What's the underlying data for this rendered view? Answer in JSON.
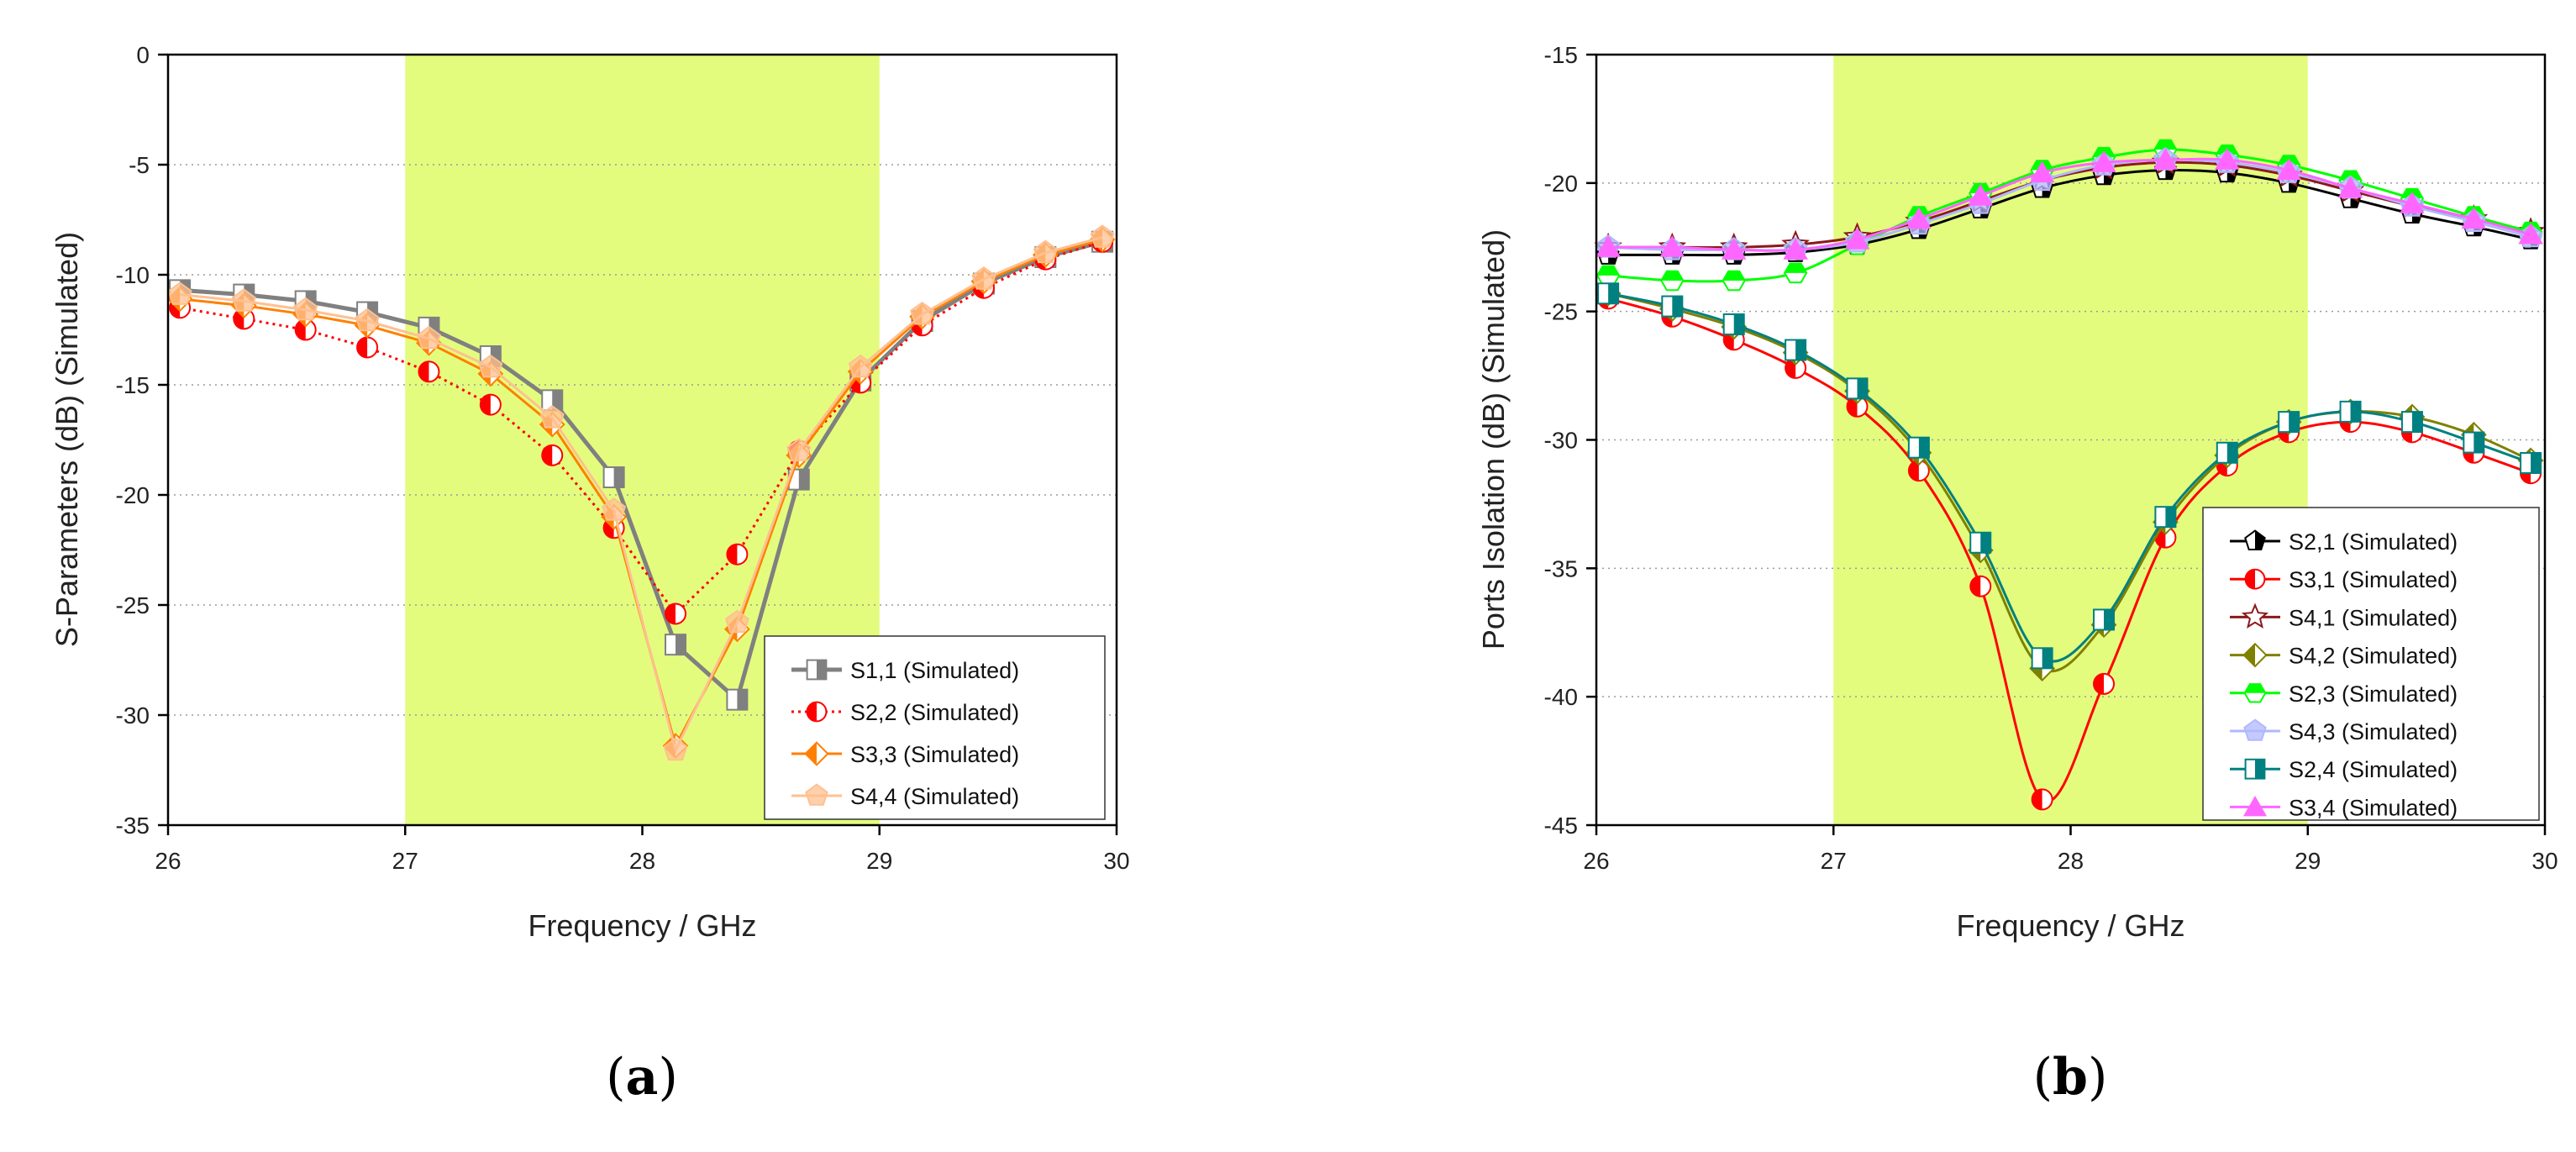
{
  "chart_data": [
    {
      "type": "line",
      "panel_label": "(a)",
      "xlabel": "Frequency / GHz",
      "ylabel": "S-Parameters (dB) (Simulated)",
      "xlim": [
        26,
        30
      ],
      "ylim": [
        -35,
        0
      ],
      "x_ticks": [
        26,
        27,
        28,
        29,
        30
      ],
      "y_ticks": [
        0,
        -5,
        -10,
        -15,
        -20,
        -25,
        -30,
        -35
      ],
      "shaded_band": [
        27,
        29
      ],
      "shaded_color": "#e3fc7e",
      "grid": "horizontal-dotted",
      "legend_position": "bottom-right",
      "x": [
        26.05,
        26.32,
        26.58,
        26.84,
        27.1,
        27.36,
        27.62,
        27.88,
        28.14,
        28.4,
        28.66,
        28.92,
        29.18,
        29.44,
        29.7,
        29.94
      ],
      "series": [
        {
          "name": "S1,1 (Simulated)",
          "color": "#808080",
          "dash": "solid",
          "width": 5,
          "marker": "square-half",
          "values": [
            -10.7,
            -10.9,
            -11.2,
            -11.7,
            -12.4,
            -13.7,
            -15.7,
            -19.2,
            -26.8,
            -29.3,
            -19.3,
            -14.8,
            -12.1,
            -10.4,
            -9.2,
            -8.5
          ]
        },
        {
          "name": "S2,2 (Simulated)",
          "color": "#ff0000",
          "dash": "dotted",
          "width": 3,
          "marker": "circle-half",
          "values": [
            -11.5,
            -12.0,
            -12.5,
            -13.3,
            -14.4,
            -15.9,
            -18.2,
            -21.5,
            -25.4,
            -22.7,
            -18.0,
            -14.9,
            -12.3,
            -10.6,
            -9.3,
            -8.5
          ]
        },
        {
          "name": "S3,3 (Simulated)",
          "color": "#ff8000",
          "dash": "solid",
          "width": 3,
          "marker": "diamond-half",
          "values": [
            -11.1,
            -11.4,
            -11.8,
            -12.3,
            -13.1,
            -14.5,
            -16.8,
            -21.0,
            -31.4,
            -26.1,
            -18.2,
            -14.4,
            -11.9,
            -10.3,
            -9.1,
            -8.4
          ]
        },
        {
          "name": "S4,4 (Simulated)",
          "color": "#ffc090",
          "dash": "solid",
          "width": 3,
          "marker": "pentagon",
          "values": [
            -10.9,
            -11.2,
            -11.6,
            -12.1,
            -12.9,
            -14.2,
            -16.5,
            -20.7,
            -31.6,
            -25.8,
            -18.0,
            -14.2,
            -11.8,
            -10.2,
            -9.0,
            -8.3
          ]
        }
      ]
    },
    {
      "type": "line",
      "panel_label": "(b)",
      "xlabel": "Frequency / GHz",
      "ylabel": "Ports Isolation (dB) (Simulated)",
      "xlim": [
        26,
        30
      ],
      "ylim": [
        -45,
        -15
      ],
      "x_ticks": [
        26,
        27,
        28,
        29,
        30
      ],
      "y_ticks": [
        -15,
        -20,
        -25,
        -30,
        -35,
        -40,
        -45
      ],
      "shaded_band": [
        27,
        29
      ],
      "shaded_color": "#e3fc7e",
      "grid": "horizontal-dotted",
      "legend_position": "bottom-right",
      "x": [
        26.05,
        26.32,
        26.58,
        26.84,
        27.1,
        27.36,
        27.62,
        27.88,
        28.14,
        28.4,
        28.66,
        28.92,
        29.18,
        29.44,
        29.7,
        29.94
      ],
      "series": [
        {
          "name": "S2,1 (Simulated)",
          "color": "#000000",
          "marker": "pentagon-half",
          "values": [
            -22.8,
            -22.8,
            -22.8,
            -22.7,
            -22.4,
            -21.8,
            -21.0,
            -20.2,
            -19.7,
            -19.5,
            -19.6,
            -20.0,
            -20.6,
            -21.2,
            -21.7,
            -22.2
          ]
        },
        {
          "name": "S3,1 (Simulated)",
          "color": "#ff0000",
          "marker": "circle-half",
          "values": [
            -24.5,
            -25.2,
            -26.1,
            -27.2,
            -28.7,
            -31.2,
            -35.7,
            -44.0,
            -39.5,
            -33.8,
            -31.0,
            -29.7,
            -29.3,
            -29.7,
            -30.5,
            -31.3
          ]
        },
        {
          "name": "S4,1 (Simulated)",
          "color": "#8b1a1a",
          "marker": "star",
          "values": [
            -22.5,
            -22.5,
            -22.5,
            -22.4,
            -22.1,
            -21.5,
            -20.7,
            -19.9,
            -19.4,
            -19.2,
            -19.3,
            -19.7,
            -20.3,
            -20.9,
            -21.4,
            -21.9
          ]
        },
        {
          "name": "S4,2 (Simulated)",
          "color": "#808000",
          "marker": "diamond-half",
          "values": [
            -24.3,
            -24.9,
            -25.6,
            -26.6,
            -28.1,
            -30.5,
            -34.3,
            -38.9,
            -37.2,
            -33.2,
            -30.6,
            -29.3,
            -28.9,
            -29.1,
            -29.8,
            -30.8
          ]
        },
        {
          "name": "S2,3 (Simulated)",
          "color": "#00ff00",
          "marker": "hexagon",
          "values": [
            -23.6,
            -23.8,
            -23.8,
            -23.5,
            -22.4,
            -21.3,
            -20.4,
            -19.5,
            -19.0,
            -18.7,
            -18.9,
            -19.3,
            -19.9,
            -20.6,
            -21.3,
            -21.9
          ]
        },
        {
          "name": "S4,3 (Simulated)",
          "color": "#b0b8ff",
          "marker": "pentagon",
          "values": [
            -22.5,
            -22.6,
            -22.6,
            -22.6,
            -22.3,
            -21.6,
            -20.8,
            -19.9,
            -19.3,
            -19.1,
            -19.2,
            -19.6,
            -20.2,
            -20.9,
            -21.5,
            -22.1
          ]
        },
        {
          "name": "S2,4 (Simulated)",
          "color": "#008080",
          "marker": "square-half",
          "values": [
            -24.3,
            -24.8,
            -25.5,
            -26.5,
            -28.0,
            -30.3,
            -34.0,
            -38.5,
            -37.0,
            -33.0,
            -30.5,
            -29.3,
            -28.9,
            -29.3,
            -30.1,
            -30.9
          ]
        },
        {
          "name": "S3,4 (Simulated)",
          "color": "#ff66ff",
          "marker": "triangle",
          "values": [
            -22.5,
            -22.5,
            -22.6,
            -22.6,
            -22.2,
            -21.4,
            -20.5,
            -19.6,
            -19.2,
            -19.1,
            -19.1,
            -19.5,
            -20.2,
            -20.8,
            -21.4,
            -22.0
          ]
        }
      ]
    }
  ]
}
